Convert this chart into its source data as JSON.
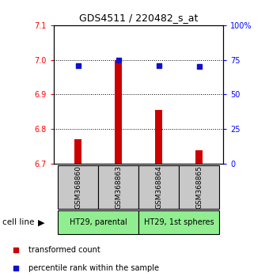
{
  "title": "GDS4511 / 220482_s_at",
  "samples": [
    "GSM368860",
    "GSM368863",
    "GSM368864",
    "GSM368865"
  ],
  "bar_values": [
    6.77,
    7.0,
    6.855,
    6.74
  ],
  "bar_bottom": 6.7,
  "percentile_values": [
    71,
    75,
    71,
    70
  ],
  "ylim_left": [
    6.7,
    7.1
  ],
  "ylim_right": [
    0,
    100
  ],
  "yticks_left": [
    6.7,
    6.8,
    6.9,
    7.0,
    7.1
  ],
  "yticks_right": [
    0,
    25,
    50,
    75,
    100
  ],
  "ytick_labels_right": [
    "0",
    "25",
    "50",
    "75",
    "100%"
  ],
  "bar_color": "#cc0000",
  "marker_color": "#1111cc",
  "cell_lines": [
    "HT29, parental",
    "HT29, 1st spheres"
  ],
  "cell_line_colors": [
    "#90ee90",
    "#90ee90"
  ],
  "sample_box_color": "#c8c8c8",
  "legend_bar_label": "transformed count",
  "legend_marker_label": "percentile rank within the sample"
}
